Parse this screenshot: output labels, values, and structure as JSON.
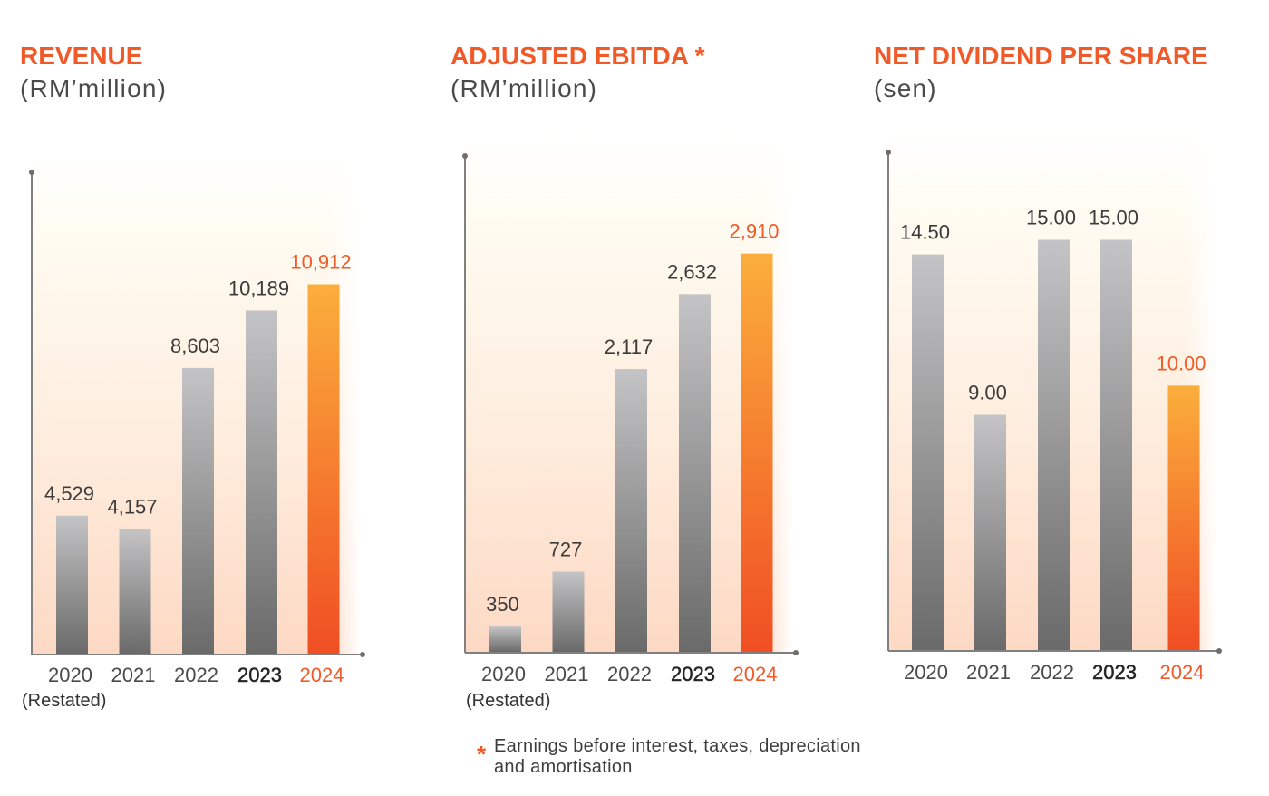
{
  "colors": {
    "accent": "#f05a28",
    "subtitle": "#4a4a4a",
    "value_label": "#3b3b3b",
    "tick": "#4a4a4a",
    "tick_strong": "#262626",
    "note": "#333333",
    "axis": "#808080",
    "axis_dot": "#6e6e6e",
    "bar_top": "#c4c4c6",
    "bar_bottom": "#6a6a6a",
    "highlight_top": "#fbae3c",
    "highlight_bottom": "#f04e23",
    "panel_top": "#fffcf3",
    "panel_mid": "#feeedf",
    "panel_bottom": "#fdd9c4",
    "footnote": "#3d3d3d"
  },
  "chart_data": [
    {
      "type": "bar",
      "title": "REVENUE",
      "subtitle": "(RM’million)",
      "categories": [
        "2020",
        "2021",
        "2022",
        "2023",
        "2024"
      ],
      "values": [
        4529,
        4157,
        8603,
        10189,
        10912
      ],
      "value_labels": [
        "4,529",
        "4,157",
        "8,603",
        "10,189",
        "10,912"
      ],
      "x_note": "(Restated)",
      "highlight": [
        false,
        false,
        false,
        false,
        true
      ],
      "strong": [
        false,
        false,
        false,
        true,
        false
      ],
      "xlabel": "",
      "ylabel": "",
      "ylim": [
        700,
        14000
      ],
      "grid": false
    },
    {
      "type": "bar",
      "title": "ADJUSTED EBITDA *",
      "subtitle": "(RM’million)",
      "categories": [
        "2020",
        "2021",
        "2022",
        "2023",
        "2024"
      ],
      "values": [
        350,
        727,
        2117,
        2632,
        2910
      ],
      "value_labels": [
        "350",
        "727",
        "2,117",
        "2,632",
        "2,910"
      ],
      "x_note": "(Restated)",
      "highlight": [
        false,
        false,
        false,
        false,
        true
      ],
      "strong": [
        false,
        false,
        false,
        true,
        false
      ],
      "xlabel": "",
      "ylabel": "",
      "ylim": [
        170,
        3580
      ],
      "grid": false,
      "footnote": {
        "marker": "*",
        "lines": [
          "Earnings before interest, taxes, depreciation",
          "and amortisation"
        ]
      }
    },
    {
      "type": "bar",
      "title": "NET DIVIDEND PER SHARE",
      "subtitle": "(sen)",
      "categories": [
        "2020",
        "2021",
        "2022",
        "2023",
        "2024"
      ],
      "values": [
        14.5,
        9,
        15,
        15,
        10
      ],
      "value_labels": [
        "14.50",
        "9.00",
        "15.00",
        "15.00",
        "10.00"
      ],
      "highlight": [
        false,
        false,
        false,
        false,
        true
      ],
      "strong": [
        false,
        false,
        false,
        true,
        false
      ],
      "xlabel": "",
      "ylabel": "",
      "ylim": [
        0.9,
        18
      ],
      "grid": false
    }
  ]
}
